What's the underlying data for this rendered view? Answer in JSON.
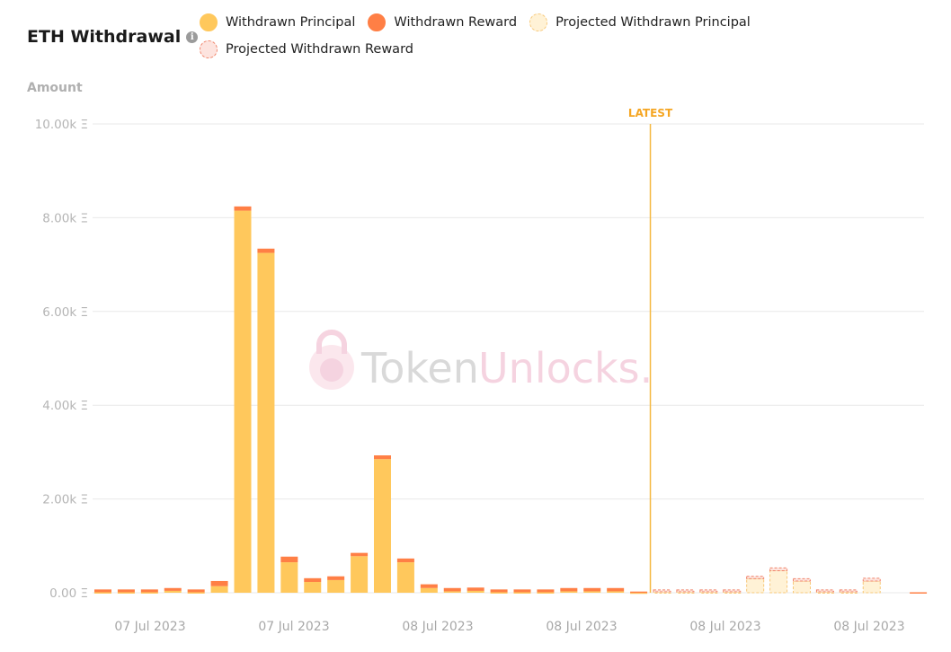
{
  "title": "ETH Withdrawal",
  "info_icon": "info-icon",
  "y_axis_title": "Amount",
  "latest_label": "LATEST",
  "watermark": {
    "part1": "Token",
    "part2": "Unlocks."
  },
  "colors": {
    "principal": "#ffc85c",
    "reward": "#ff7f45",
    "projected_principal_fill": "#fff2d6",
    "projected_principal_border": "#f7c879",
    "projected_reward_fill": "#fde4df",
    "projected_reward_border": "#f0846a",
    "latest": "#f5b942",
    "grid": "#e9e9e9"
  },
  "legend": [
    {
      "label": "Withdrawn Principal",
      "key": "principal"
    },
    {
      "label": "Withdrawn Reward",
      "key": "reward"
    },
    {
      "label": "Projected Withdrawn Principal",
      "key": "projected_principal"
    },
    {
      "label": "Projected Withdrawn Reward",
      "key": "projected_reward"
    }
  ],
  "chart_data": {
    "type": "bar",
    "stacked": true,
    "ylabel": "Amount",
    "ylim": [
      0,
      10000
    ],
    "y_ticks": [
      "0.00 Ξ",
      "2.00k Ξ",
      "4.00k Ξ",
      "6.00k Ξ",
      "8.00k Ξ",
      "10.00k Ξ"
    ],
    "x_ticks": [
      "07 Jul 2023",
      "07 Jul 2023",
      "08 Jul 2023",
      "08 Jul 2023",
      "08 Jul 2023",
      "08 Jul 2023"
    ],
    "latest_marker_after_bar": 23,
    "series": [
      {
        "name": "Withdrawn Principal",
        "values": [
          10,
          10,
          10,
          40,
          10,
          140,
          8150,
          7250,
          650,
          230,
          270,
          780,
          2850,
          650,
          100,
          30,
          40,
          10,
          10,
          10,
          30,
          30,
          30,
          5,
          0,
          0,
          0,
          0,
          0,
          0,
          0,
          0,
          0,
          0,
          0,
          0
        ]
      },
      {
        "name": "Withdrawn Reward",
        "values": [
          60,
          60,
          60,
          60,
          60,
          110,
          90,
          90,
          120,
          80,
          80,
          70,
          80,
          80,
          80,
          70,
          70,
          60,
          60,
          60,
          70,
          70,
          70,
          20,
          0,
          0,
          0,
          0,
          0,
          0,
          0,
          0,
          0,
          0,
          0,
          10
        ]
      },
      {
        "name": "Projected Withdrawn Principal",
        "values": [
          0,
          0,
          0,
          0,
          0,
          0,
          0,
          0,
          0,
          0,
          0,
          0,
          0,
          0,
          0,
          0,
          0,
          0,
          0,
          0,
          0,
          0,
          0,
          0,
          20,
          20,
          20,
          20,
          300,
          470,
          250,
          20,
          20,
          250,
          0,
          0
        ]
      },
      {
        "name": "Projected Withdrawn Reward",
        "values": [
          0,
          0,
          0,
          0,
          0,
          0,
          0,
          0,
          0,
          0,
          0,
          0,
          0,
          0,
          0,
          0,
          0,
          0,
          0,
          0,
          0,
          0,
          0,
          0,
          40,
          40,
          40,
          40,
          50,
          60,
          50,
          40,
          40,
          60,
          0,
          0
        ]
      }
    ]
  }
}
